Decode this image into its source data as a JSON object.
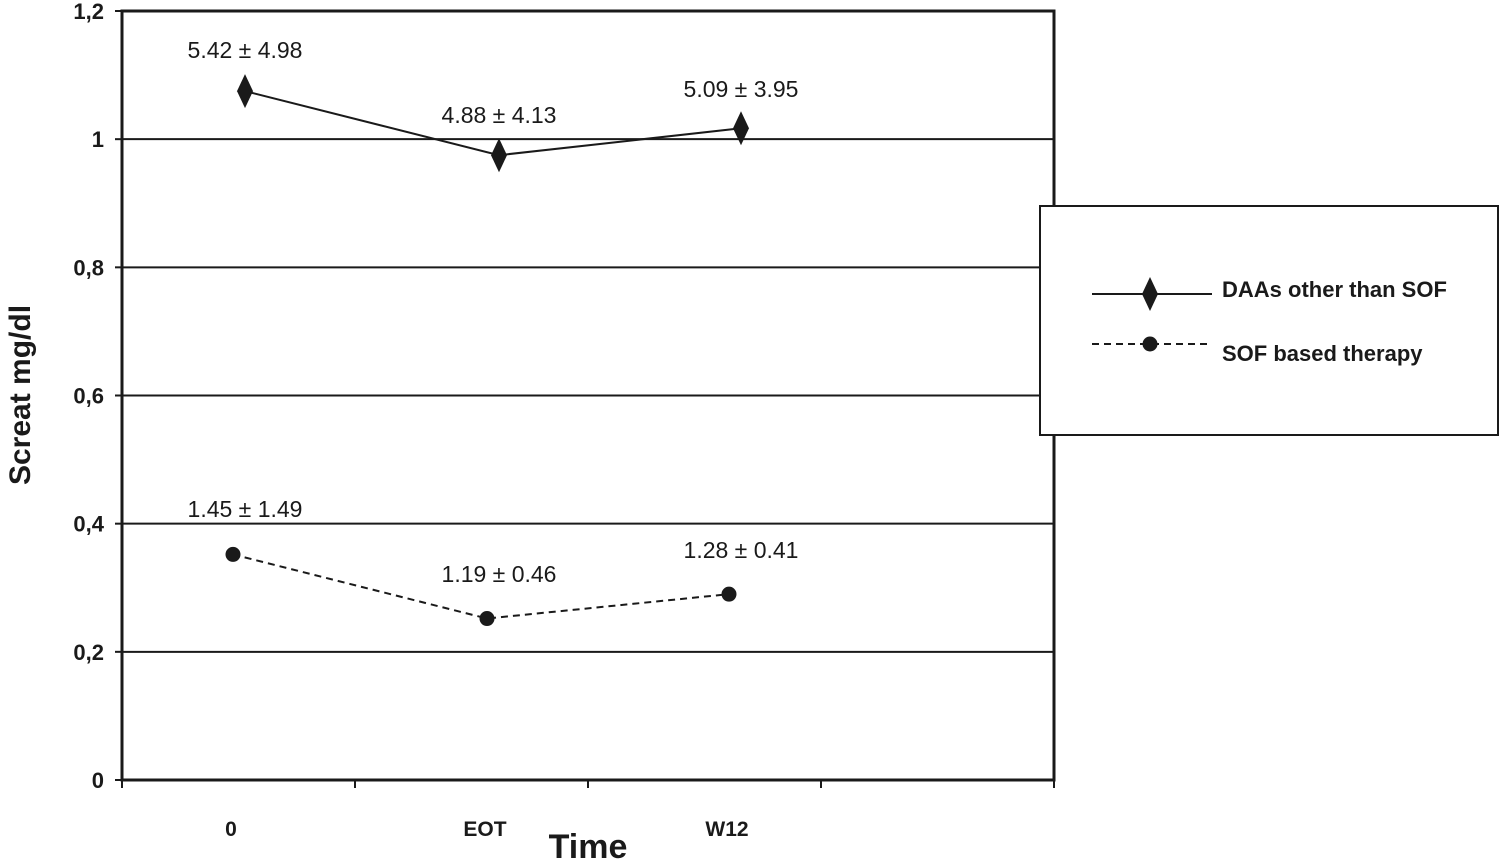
{
  "chart_data": {
    "type": "line",
    "title": "",
    "xlabel": "Time",
    "ylabel": "Screat mg/dl",
    "categories": [
      "0",
      "EOT",
      "W12"
    ],
    "ylim": [
      0,
      1.2
    ],
    "yticks": [
      0,
      0.2,
      0.4,
      0.6,
      0.8,
      1,
      1.2
    ],
    "ytick_labels": [
      "0",
      "0,2",
      "0,4",
      "0,6",
      "0,8",
      "1",
      "1,2"
    ],
    "grid": true,
    "legend_position": "right",
    "series": [
      {
        "name": "DAAs other than SOF",
        "values": [
          1.075,
          0.975,
          1.017
        ],
        "point_labels": [
          "5.42 ± 4.98",
          "4.88 ± 4.13",
          "5.09 ± 3.95"
        ],
        "marker": "diamond",
        "line_style": "solid",
        "color": "#1a1a1a"
      },
      {
        "name": "SOF based therapy",
        "values": [
          0.352,
          0.252,
          0.29
        ],
        "point_labels": [
          "1.45 ± 1.49",
          "1.19 ± 0.46",
          "1.28 ± 0.41"
        ],
        "marker": "circle",
        "line_style": "dashed",
        "color": "#1a1a1a"
      }
    ]
  }
}
